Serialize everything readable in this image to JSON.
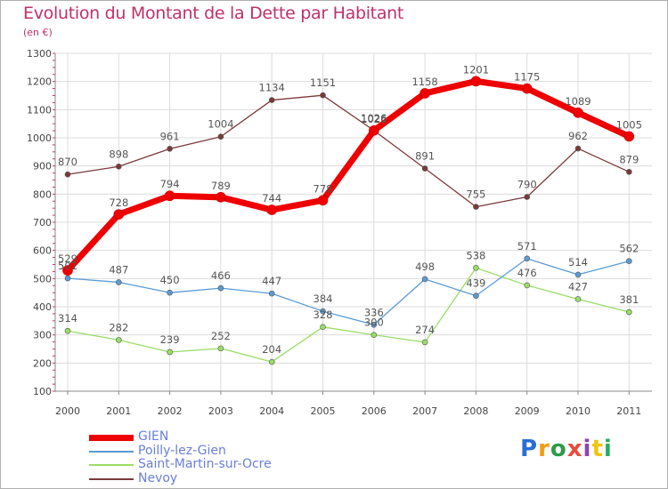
{
  "header": {
    "title": "Evolution du Montant de la Dette par Habitant",
    "unit": "(en €)"
  },
  "logo": {
    "text": "Proxiti",
    "colors": [
      "#2a6fd6",
      "#f39c12",
      "#2e9b4a",
      "#e74c3c",
      "#8e44ad",
      "#f1c40f",
      "#27ae60"
    ]
  },
  "chart_data": {
    "type": "line",
    "title": "Evolution du Montant de la Dette par Habitant",
    "subtitle": "(en €)",
    "xlabel": "",
    "ylabel": "",
    "x": [
      "2000",
      "2001",
      "2002",
      "2003",
      "2004",
      "2005",
      "2006",
      "2007",
      "2008",
      "2009",
      "2010",
      "2011"
    ],
    "ylim": [
      100,
      1300
    ],
    "yticks": [
      100,
      200,
      300,
      400,
      500,
      600,
      700,
      800,
      900,
      1000,
      1100,
      1200,
      1300
    ],
    "grid": true,
    "legend_position": "bottom-left",
    "series": [
      {
        "name": "GIEN",
        "color": "#ee0000",
        "values": [
          529,
          728,
          794,
          789,
          744,
          778,
          1026,
          1158,
          1201,
          1175,
          1089,
          1005
        ]
      },
      {
        "name": "Poilly-lez-Gien",
        "color": "#5b9bd5",
        "values": [
          501,
          487,
          450,
          466,
          447,
          384,
          336,
          498,
          439,
          571,
          514,
          562
        ]
      },
      {
        "name": "Saint-Martin-sur-Ocre",
        "color": "#99dd66",
        "values": [
          314,
          282,
          239,
          252,
          204,
          328,
          300,
          274,
          538,
          476,
          427,
          381
        ]
      },
      {
        "name": "Nevoy",
        "color": "#7a3a3a",
        "values": [
          870,
          898,
          961,
          1004,
          1134,
          1151,
          1026,
          891,
          755,
          790,
          962,
          879
        ]
      }
    ]
  }
}
